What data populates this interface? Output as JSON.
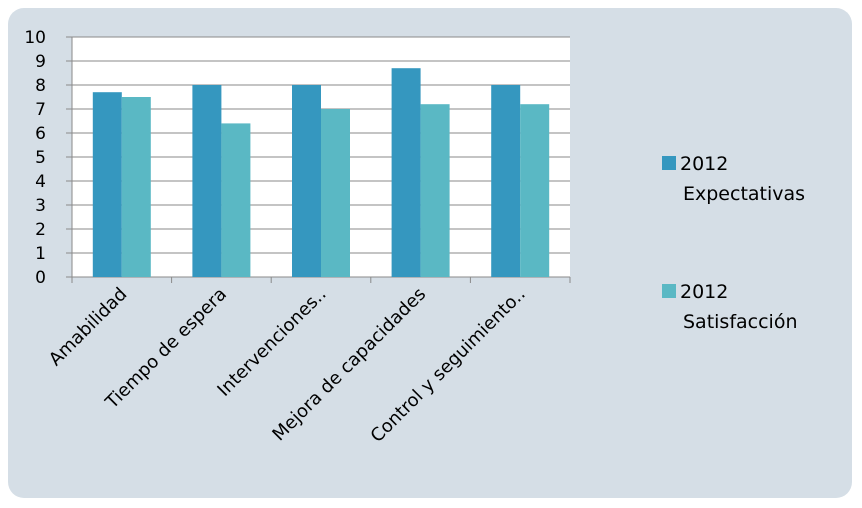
{
  "chart_data": {
    "type": "bar",
    "categories": [
      "Amabilidad",
      "Tiempo de espera",
      "Intervenciones..",
      "Mejora de capacidades",
      "Control y seguimiento.."
    ],
    "series": [
      {
        "name": "2012 Expectativas",
        "legend_lines": [
          "2012",
          "Expectativas"
        ],
        "color": "#3597bf",
        "values": [
          7.7,
          8.0,
          8.0,
          8.7,
          8.0
        ]
      },
      {
        "name": "2012 Satisfacción",
        "legend_lines": [
          "2012",
          "Satisfacción"
        ],
        "color": "#5ab8c4",
        "values": [
          7.5,
          6.4,
          7.0,
          7.2,
          7.2
        ]
      }
    ],
    "ylim": [
      0,
      10
    ],
    "yticks": [
      "0",
      "1",
      "2",
      "3",
      "4",
      "5",
      "6",
      "7",
      "8",
      "9",
      "10"
    ],
    "grid": true,
    "legend": "right",
    "title": "",
    "xlabel": "",
    "ylabel": ""
  }
}
